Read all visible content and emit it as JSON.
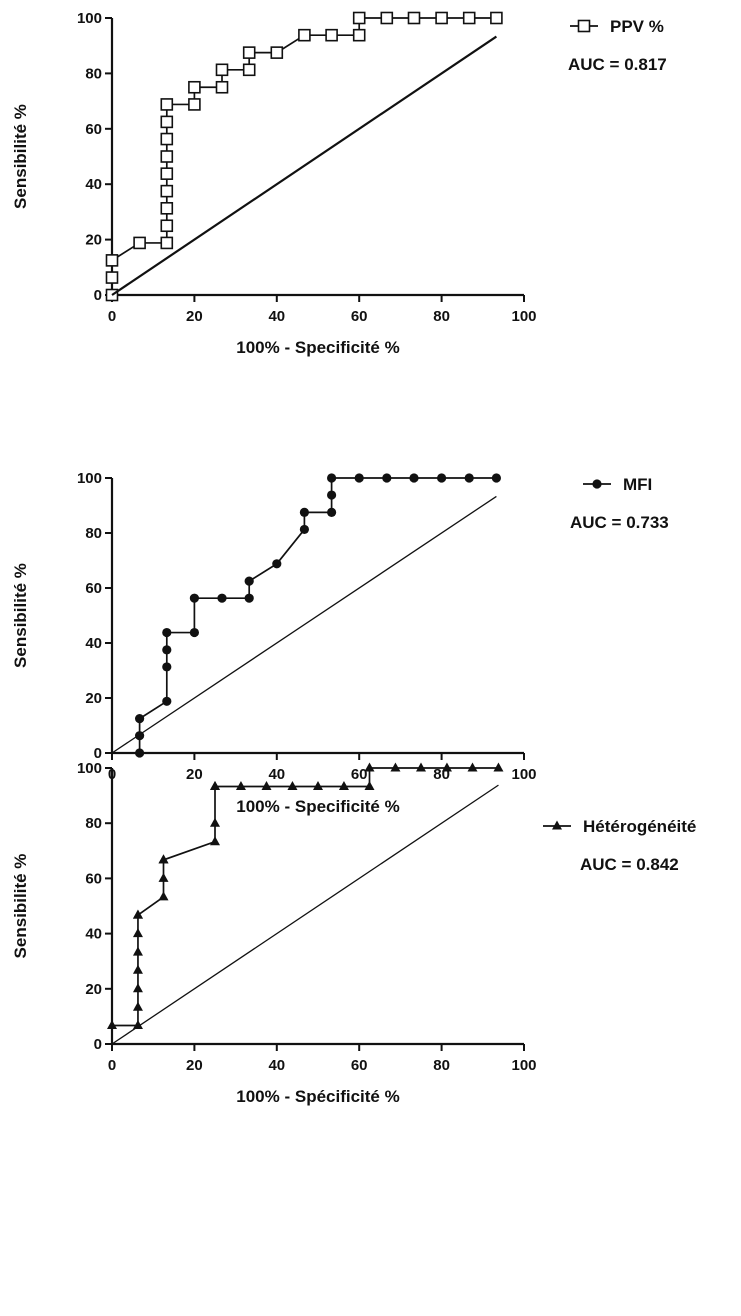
{
  "chart_data": [
    {
      "type": "line",
      "xlabel": "100% - Specificité %",
      "ylabel": "Sensibilité %",
      "xlim": [
        0,
        100
      ],
      "ylim": [
        0,
        100
      ],
      "xticks": [
        "0",
        "20",
        "40",
        "60",
        "80",
        "100"
      ],
      "yticks": [
        "0",
        "20",
        "40",
        "60",
        "80",
        "100"
      ],
      "grid": false,
      "legend_position": "top-right",
      "annotation": "AUC = 0.817",
      "series": [
        {
          "name": "PPV %",
          "marker": "open-square",
          "x": [
            0,
            0,
            0,
            6.7,
            13.3,
            13.3,
            13.3,
            13.3,
            13.3,
            13.3,
            13.3,
            13.3,
            13.3,
            20,
            20,
            26.7,
            26.7,
            33.3,
            33.3,
            40,
            46.7,
            53.3,
            60,
            60,
            66.7,
            73.3,
            80,
            86.7,
            93.3
          ],
          "y": [
            0,
            6.3,
            12.5,
            18.8,
            18.8,
            25,
            31.3,
            37.5,
            43.8,
            50,
            56.3,
            62.5,
            68.8,
            68.8,
            75,
            75,
            81.3,
            81.3,
            87.5,
            87.5,
            93.8,
            93.8,
            93.8,
            100,
            100,
            100,
            100,
            100,
            100
          ]
        },
        {
          "name": "",
          "style": "reference",
          "x": [
            0,
            93.3
          ],
          "y": [
            0,
            93.3
          ]
        }
      ]
    },
    {
      "type": "line",
      "xlabel": "100% - Specificité %",
      "ylabel": "Sensibilité %",
      "xlim": [
        0,
        100
      ],
      "ylim": [
        0,
        100
      ],
      "xticks": [
        "0",
        "20",
        "40",
        "60",
        "80",
        "100"
      ],
      "yticks": [
        "0",
        "20",
        "40",
        "60",
        "80",
        "100"
      ],
      "grid": false,
      "legend_position": "top-right",
      "annotation": "AUC = 0.733",
      "series": [
        {
          "name": "MFI",
          "marker": "filled-circle",
          "x": [
            6.7,
            6.7,
            6.7,
            13.3,
            13.3,
            13.3,
            13.3,
            20,
            20,
            26.7,
            33.3,
            33.3,
            40,
            46.7,
            46.7,
            53.3,
            53.3,
            53.3,
            60,
            66.7,
            73.3,
            80,
            86.7,
            93.3
          ],
          "y": [
            0,
            6.3,
            12.5,
            18.8,
            31.3,
            37.5,
            43.8,
            43.8,
            56.3,
            56.3,
            56.3,
            62.5,
            68.8,
            81.3,
            87.5,
            87.5,
            93.8,
            100,
            100,
            100,
            100,
            100,
            100,
            100
          ]
        },
        {
          "name": "",
          "style": "reference",
          "x": [
            0,
            93.3
          ],
          "y": [
            0,
            93.3
          ]
        }
      ]
    },
    {
      "type": "line",
      "xlabel": "100% - Spécificité %",
      "ylabel": "Sensibilité %",
      "xlim": [
        0,
        100
      ],
      "ylim": [
        0,
        100
      ],
      "xticks": [
        "0",
        "20",
        "40",
        "60",
        "80",
        "100"
      ],
      "yticks": [
        "0",
        "20",
        "40",
        "60",
        "80",
        "100"
      ],
      "grid": false,
      "legend_position": "top-right",
      "annotation": "AUC = 0.842",
      "series": [
        {
          "name": "Hétérogénéité",
          "marker": "filled-triangle",
          "x": [
            0,
            6.3,
            6.3,
            6.3,
            6.3,
            6.3,
            6.3,
            6.3,
            6.3,
            12.5,
            12.5,
            12.5,
            12.5,
            25,
            25,
            25,
            25,
            31.3,
            37.5,
            43.8,
            50,
            56.3,
            62.5,
            62.5,
            68.8,
            75,
            81.3,
            87.5,
            93.8
          ],
          "y": [
            6.7,
            6.7,
            13.3,
            20,
            26.7,
            33.3,
            40,
            46.7,
            46.7,
            53.3,
            60,
            66.7,
            66.7,
            73.3,
            80,
            93.3,
            93.3,
            93.3,
            93.3,
            93.3,
            93.3,
            93.3,
            93.3,
            100,
            100,
            100,
            100,
            100,
            100
          ]
        },
        {
          "name": "",
          "style": "reference",
          "x": [
            0,
            93.8
          ],
          "y": [
            0,
            93.8
          ]
        }
      ]
    }
  ]
}
